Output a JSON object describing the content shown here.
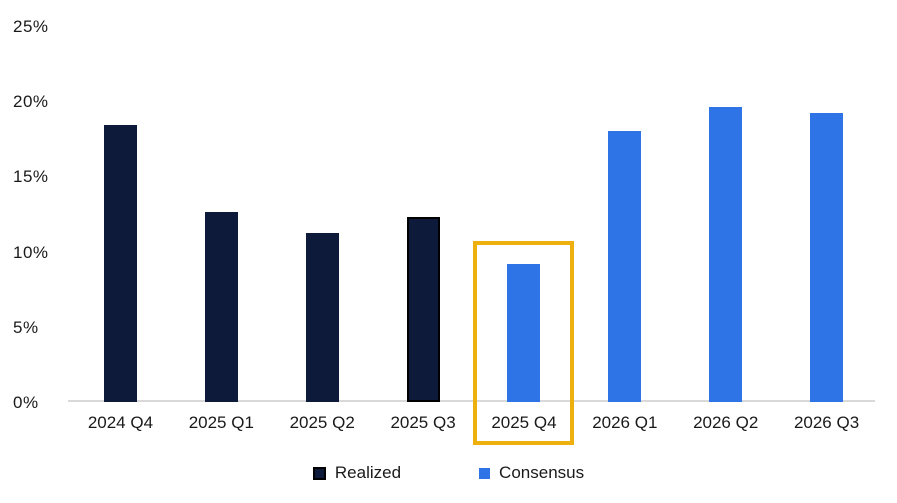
{
  "chart_data": {
    "type": "bar",
    "title": "",
    "xlabel": "",
    "ylabel": "",
    "categories": [
      "2024 Q4",
      "2025 Q1",
      "2025 Q2",
      "2025 Q3",
      "2025 Q4",
      "2026 Q1",
      "2026 Q2",
      "2026 Q3"
    ],
    "series": [
      {
        "name": "Realized",
        "color": "#0e1a3a",
        "values": [
          18.4,
          12.6,
          11.2,
          12.3,
          null,
          null,
          null,
          null
        ]
      },
      {
        "name": "Consensus",
        "color": "#2e74e6",
        "values": [
          null,
          null,
          null,
          null,
          9.2,
          18.0,
          19.6,
          19.2
        ]
      }
    ],
    "ylim": [
      0,
      25
    ],
    "yticks": [
      0,
      5,
      10,
      15,
      20,
      25
    ],
    "ytick_labels": [
      "0%",
      "5%",
      "10%",
      "15%",
      "20%",
      "25%"
    ],
    "grid": false,
    "legend_position": "bottom",
    "annotations": {
      "highlight_box": {
        "category": "2025 Q4",
        "color": "#edb00f",
        "note": "gold rectangle framing the 2025 Q4 bar and its axis label"
      },
      "outlined_bar": {
        "category": "2025 Q3",
        "border_color": "#000000"
      }
    }
  },
  "legend": {
    "items": [
      {
        "label": "Realized",
        "swatch_color": "#0e1a3a",
        "swatch_border": "#000000"
      },
      {
        "label": "Consensus",
        "swatch_color": "#2e74e6",
        "swatch_border": "#2e74e6"
      }
    ]
  },
  "colors": {
    "background": "#ffffff",
    "axis_line": "#d9d9d9",
    "text": "#000000",
    "realized_bar": "#0e1a3a",
    "consensus_bar": "#2e74e6",
    "highlight": "#edb00f"
  }
}
